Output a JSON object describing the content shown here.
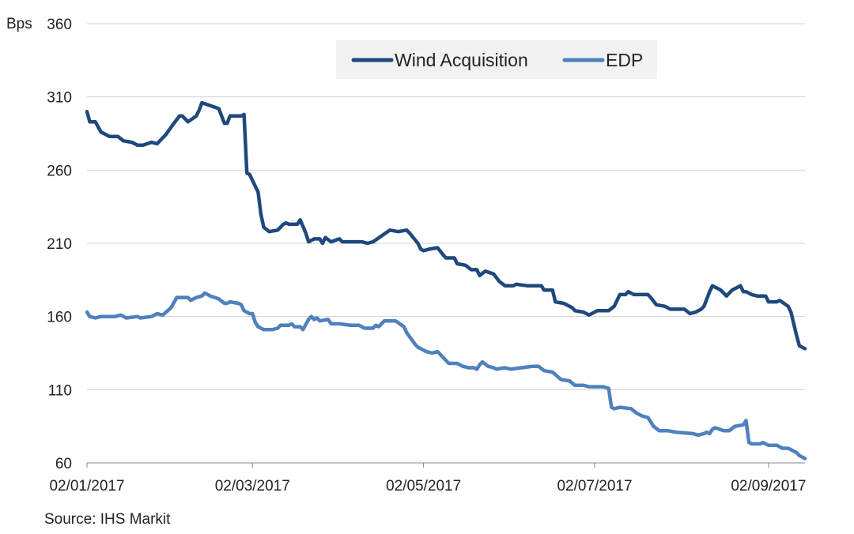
{
  "chart_data": {
    "type": "line",
    "ylabel": "Bps",
    "ylim": [
      60,
      360
    ],
    "yticks": [
      60,
      110,
      160,
      210,
      260,
      310,
      360
    ],
    "xlim": [
      "2017-01-02",
      "2017-09-15"
    ],
    "xticks": [
      {
        "date": "2017-01-02",
        "label": "02/01/2017"
      },
      {
        "date": "2017-03-02",
        "label": "02/03/2017"
      },
      {
        "date": "2017-05-02",
        "label": "02/05/2017"
      },
      {
        "date": "2017-07-02",
        "label": "02/07/2017"
      },
      {
        "date": "2017-09-02",
        "label": "02/09/2017"
      }
    ],
    "grid": "horizontal",
    "legend": "top-center",
    "source": "Source: IHS Markit",
    "series": [
      {
        "name": "Wind Acquisition",
        "color": "#1F497D",
        "points": [
          [
            "2017-01-02",
            300
          ],
          [
            "2017-01-03",
            293
          ],
          [
            "2017-01-05",
            293
          ],
          [
            "2017-01-07",
            286
          ],
          [
            "2017-01-10",
            283
          ],
          [
            "2017-01-13",
            283
          ],
          [
            "2017-01-15",
            280
          ],
          [
            "2017-01-18",
            279
          ],
          [
            "2017-01-20",
            277
          ],
          [
            "2017-01-22",
            277
          ],
          [
            "2017-01-25",
            279
          ],
          [
            "2017-01-27",
            278
          ],
          [
            "2017-01-30",
            284
          ],
          [
            "2017-02-02",
            292
          ],
          [
            "2017-02-04",
            297
          ],
          [
            "2017-02-05",
            297
          ],
          [
            "2017-02-07",
            293
          ],
          [
            "2017-02-10",
            297
          ],
          [
            "2017-02-11",
            301
          ],
          [
            "2017-02-12",
            306
          ],
          [
            "2017-02-15",
            304
          ],
          [
            "2017-02-18",
            302
          ],
          [
            "2017-02-20",
            292
          ],
          [
            "2017-02-21",
            292
          ],
          [
            "2017-02-22",
            297
          ],
          [
            "2017-02-26",
            297
          ],
          [
            "2017-02-27",
            298
          ],
          [
            "2017-02-28",
            258
          ],
          [
            "2017-03-01",
            257
          ],
          [
            "2017-03-03",
            249
          ],
          [
            "2017-03-04",
            245
          ],
          [
            "2017-03-05",
            230
          ],
          [
            "2017-03-06",
            221
          ],
          [
            "2017-03-08",
            218
          ],
          [
            "2017-03-11",
            219
          ],
          [
            "2017-03-13",
            223
          ],
          [
            "2017-03-14",
            224
          ],
          [
            "2017-03-15",
            223
          ],
          [
            "2017-03-18",
            223
          ],
          [
            "2017-03-19",
            226
          ],
          [
            "2017-03-21",
            217
          ],
          [
            "2017-03-22",
            211
          ],
          [
            "2017-03-24",
            213
          ],
          [
            "2017-03-26",
            213
          ],
          [
            "2017-03-27",
            210
          ],
          [
            "2017-03-28",
            214
          ],
          [
            "2017-03-30",
            211
          ],
          [
            "2017-04-02",
            213
          ],
          [
            "2017-04-03",
            211
          ],
          [
            "2017-04-10",
            211
          ],
          [
            "2017-04-12",
            210
          ],
          [
            "2017-04-14",
            211
          ],
          [
            "2017-04-17",
            215
          ],
          [
            "2017-04-20",
            219
          ],
          [
            "2017-04-23",
            218
          ],
          [
            "2017-04-26",
            219
          ],
          [
            "2017-04-27",
            217
          ],
          [
            "2017-04-30",
            210
          ],
          [
            "2017-05-01",
            206
          ],
          [
            "2017-05-02",
            205
          ],
          [
            "2017-05-04",
            206
          ],
          [
            "2017-05-07",
            207
          ],
          [
            "2017-05-09",
            202
          ],
          [
            "2017-05-10",
            200
          ],
          [
            "2017-05-13",
            200
          ],
          [
            "2017-05-14",
            196
          ],
          [
            "2017-05-17",
            195
          ],
          [
            "2017-05-19",
            192
          ],
          [
            "2017-05-21",
            192
          ],
          [
            "2017-05-22",
            188
          ],
          [
            "2017-05-24",
            191
          ],
          [
            "2017-05-27",
            189
          ],
          [
            "2017-05-29",
            184
          ],
          [
            "2017-05-31",
            181
          ],
          [
            "2017-06-03",
            181
          ],
          [
            "2017-06-04",
            182
          ],
          [
            "2017-06-08",
            181
          ],
          [
            "2017-06-10",
            181
          ],
          [
            "2017-06-13",
            181
          ],
          [
            "2017-06-14",
            178
          ],
          [
            "2017-06-17",
            178
          ],
          [
            "2017-06-18",
            170
          ],
          [
            "2017-06-21",
            169
          ],
          [
            "2017-06-24",
            166
          ],
          [
            "2017-06-25",
            164
          ],
          [
            "2017-06-28",
            163
          ],
          [
            "2017-06-30",
            161
          ],
          [
            "2017-07-03",
            164
          ],
          [
            "2017-07-05",
            164
          ],
          [
            "2017-07-07",
            164
          ],
          [
            "2017-07-09",
            167
          ],
          [
            "2017-07-11",
            175
          ],
          [
            "2017-07-13",
            175
          ],
          [
            "2017-07-14",
            177
          ],
          [
            "2017-07-16",
            175
          ],
          [
            "2017-07-18",
            175
          ],
          [
            "2017-07-21",
            175
          ],
          [
            "2017-07-22",
            173
          ],
          [
            "2017-07-24",
            168
          ],
          [
            "2017-07-27",
            167
          ],
          [
            "2017-07-29",
            165
          ],
          [
            "2017-07-31",
            165
          ],
          [
            "2017-08-03",
            165
          ],
          [
            "2017-08-05",
            162
          ],
          [
            "2017-08-07",
            163
          ],
          [
            "2017-08-09",
            165
          ],
          [
            "2017-08-10",
            167
          ],
          [
            "2017-08-12",
            177
          ],
          [
            "2017-08-13",
            181
          ],
          [
            "2017-08-16",
            178
          ],
          [
            "2017-08-18",
            174
          ],
          [
            "2017-08-20",
            178
          ],
          [
            "2017-08-22",
            180
          ],
          [
            "2017-08-23",
            181
          ],
          [
            "2017-08-24",
            177
          ],
          [
            "2017-08-25",
            177
          ],
          [
            "2017-08-27",
            175
          ],
          [
            "2017-08-29",
            174
          ],
          [
            "2017-09-01",
            174
          ],
          [
            "2017-09-02",
            170
          ],
          [
            "2017-09-05",
            170
          ],
          [
            "2017-09-06",
            171
          ],
          [
            "2017-09-09",
            167
          ],
          [
            "2017-09-10",
            163
          ],
          [
            "2017-09-11",
            155
          ],
          [
            "2017-09-12",
            147
          ],
          [
            "2017-09-13",
            140
          ],
          [
            "2017-09-15",
            138
          ]
        ]
      },
      {
        "name": "EDP",
        "color": "#4F81BD",
        "points": [
          [
            "2017-01-02",
            163
          ],
          [
            "2017-01-03",
            160
          ],
          [
            "2017-01-05",
            159
          ],
          [
            "2017-01-07",
            160
          ],
          [
            "2017-01-12",
            160
          ],
          [
            "2017-01-14",
            161
          ],
          [
            "2017-01-16",
            159
          ],
          [
            "2017-01-20",
            160
          ],
          [
            "2017-01-21",
            159
          ],
          [
            "2017-01-25",
            160
          ],
          [
            "2017-01-27",
            162
          ],
          [
            "2017-01-29",
            161
          ],
          [
            "2017-02-01",
            166
          ],
          [
            "2017-02-03",
            173
          ],
          [
            "2017-02-07",
            173
          ],
          [
            "2017-02-08",
            171
          ],
          [
            "2017-02-10",
            173
          ],
          [
            "2017-02-12",
            174
          ],
          [
            "2017-02-13",
            176
          ],
          [
            "2017-02-15",
            174
          ],
          [
            "2017-02-18",
            172
          ],
          [
            "2017-02-20",
            169
          ],
          [
            "2017-02-21",
            169
          ],
          [
            "2017-02-22",
            170
          ],
          [
            "2017-02-25",
            169
          ],
          [
            "2017-02-26",
            168
          ],
          [
            "2017-02-27",
            164
          ],
          [
            "2017-03-01",
            162
          ],
          [
            "2017-03-02",
            162
          ],
          [
            "2017-03-03",
            156
          ],
          [
            "2017-03-04",
            153
          ],
          [
            "2017-03-06",
            151
          ],
          [
            "2017-03-09",
            151
          ],
          [
            "2017-03-11",
            152
          ],
          [
            "2017-03-12",
            154
          ],
          [
            "2017-03-15",
            154
          ],
          [
            "2017-03-16",
            155
          ],
          [
            "2017-03-17",
            153
          ],
          [
            "2017-03-19",
            153
          ],
          [
            "2017-03-20",
            151
          ],
          [
            "2017-03-22",
            158
          ],
          [
            "2017-03-23",
            160
          ],
          [
            "2017-03-24",
            158
          ],
          [
            "2017-03-25",
            159
          ],
          [
            "2017-03-26",
            157
          ],
          [
            "2017-03-29",
            158
          ],
          [
            "2017-03-30",
            155
          ],
          [
            "2017-04-02",
            155
          ],
          [
            "2017-04-06",
            154
          ],
          [
            "2017-04-09",
            154
          ],
          [
            "2017-04-11",
            152
          ],
          [
            "2017-04-14",
            152
          ],
          [
            "2017-04-15",
            154
          ],
          [
            "2017-04-16",
            153
          ],
          [
            "2017-04-18",
            157
          ],
          [
            "2017-04-22",
            157
          ],
          [
            "2017-04-25",
            153
          ],
          [
            "2017-04-26",
            149
          ],
          [
            "2017-04-29",
            141
          ],
          [
            "2017-04-30",
            139
          ],
          [
            "2017-05-01",
            138
          ],
          [
            "2017-05-03",
            136
          ],
          [
            "2017-05-05",
            135
          ],
          [
            "2017-05-07",
            136
          ],
          [
            "2017-05-09",
            132
          ],
          [
            "2017-05-11",
            128
          ],
          [
            "2017-05-14",
            128
          ],
          [
            "2017-05-16",
            126
          ],
          [
            "2017-05-18",
            125
          ],
          [
            "2017-05-20",
            125
          ],
          [
            "2017-05-21",
            124
          ],
          [
            "2017-05-22",
            127
          ],
          [
            "2017-05-23",
            129
          ],
          [
            "2017-05-25",
            126
          ],
          [
            "2017-05-27",
            125
          ],
          [
            "2017-05-28",
            124
          ],
          [
            "2017-05-31",
            125
          ],
          [
            "2017-06-02",
            124
          ],
          [
            "2017-06-06",
            125
          ],
          [
            "2017-06-10",
            126
          ],
          [
            "2017-06-12",
            126
          ],
          [
            "2017-06-14",
            123
          ],
          [
            "2017-06-17",
            122
          ],
          [
            "2017-06-20",
            117
          ],
          [
            "2017-06-23",
            116
          ],
          [
            "2017-06-25",
            113
          ],
          [
            "2017-06-28",
            113
          ],
          [
            "2017-06-30",
            112
          ],
          [
            "2017-07-03",
            112
          ],
          [
            "2017-07-05",
            112
          ],
          [
            "2017-07-07",
            111
          ],
          [
            "2017-07-08",
            98
          ],
          [
            "2017-07-09",
            97
          ],
          [
            "2017-07-11",
            98
          ],
          [
            "2017-07-15",
            97
          ],
          [
            "2017-07-17",
            94
          ],
          [
            "2017-07-19",
            92
          ],
          [
            "2017-07-21",
            91
          ],
          [
            "2017-07-23",
            85
          ],
          [
            "2017-07-25",
            82
          ],
          [
            "2017-07-28",
            82
          ],
          [
            "2017-07-31",
            81
          ],
          [
            "2017-08-06",
            80
          ],
          [
            "2017-08-08",
            79
          ],
          [
            "2017-08-10",
            80
          ],
          [
            "2017-08-11",
            81
          ],
          [
            "2017-08-12",
            80
          ],
          [
            "2017-08-13",
            83
          ],
          [
            "2017-08-14",
            84
          ],
          [
            "2017-08-17",
            82
          ],
          [
            "2017-08-19",
            82
          ],
          [
            "2017-08-21",
            85
          ],
          [
            "2017-08-24",
            86
          ],
          [
            "2017-08-25",
            89
          ],
          [
            "2017-08-26",
            74
          ],
          [
            "2017-08-27",
            73
          ],
          [
            "2017-08-30",
            73
          ],
          [
            "2017-08-31",
            74
          ],
          [
            "2017-09-02",
            72
          ],
          [
            "2017-09-05",
            72
          ],
          [
            "2017-09-07",
            70
          ],
          [
            "2017-09-09",
            70
          ],
          [
            "2017-09-10",
            69
          ],
          [
            "2017-09-12",
            67
          ],
          [
            "2017-09-13",
            65
          ],
          [
            "2017-09-15",
            63
          ]
        ]
      }
    ]
  }
}
